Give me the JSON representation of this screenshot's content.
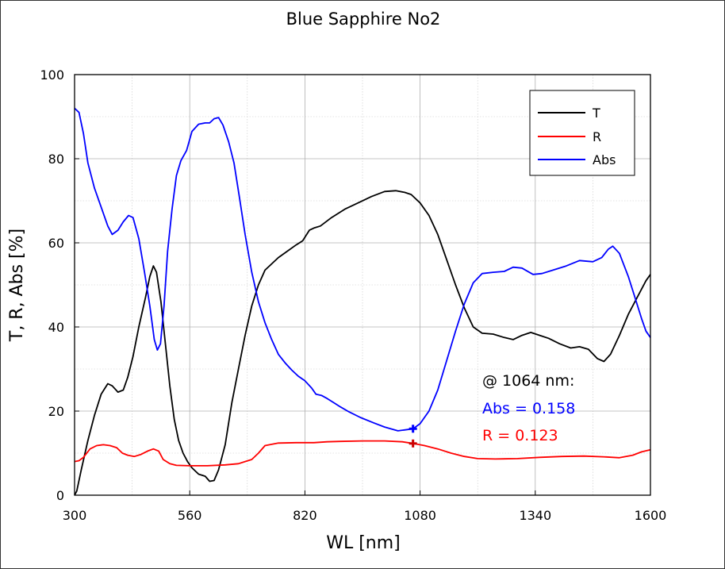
{
  "chart_data": {
    "type": "line",
    "title": "Blue Sapphire No2",
    "xlabel": "WL [nm]",
    "ylabel": "T, R, Abs [%]",
    "xlim": [
      300,
      1600
    ],
    "ylim": [
      0,
      100
    ],
    "x_ticks": [
      300,
      560,
      820,
      1080,
      1340,
      1600
    ],
    "y_ticks": [
      0,
      20,
      40,
      60,
      80,
      100
    ],
    "x_tick_labels": [
      "300",
      "560",
      "820",
      "1080",
      "1340",
      "1600"
    ],
    "y_tick_labels": [
      "0",
      "20",
      "40",
      "60",
      "80",
      "100"
    ],
    "grid": true,
    "legend_position": "top-right",
    "series": [
      {
        "name": "T",
        "color": "#000000",
        "points": [
          [
            300,
            0
          ],
          [
            305,
            1
          ],
          [
            315,
            6
          ],
          [
            330,
            13
          ],
          [
            345,
            19
          ],
          [
            360,
            24
          ],
          [
            375,
            26.5
          ],
          [
            385,
            26
          ],
          [
            398,
            24.5
          ],
          [
            410,
            25
          ],
          [
            420,
            28
          ],
          [
            432,
            33
          ],
          [
            445,
            40
          ],
          [
            460,
            47
          ],
          [
            470,
            52
          ],
          [
            478,
            54.5
          ],
          [
            485,
            53
          ],
          [
            495,
            46
          ],
          [
            505,
            36
          ],
          [
            515,
            26
          ],
          [
            525,
            18
          ],
          [
            535,
            13
          ],
          [
            545,
            10
          ],
          [
            555,
            8
          ],
          [
            565,
            6.5
          ],
          [
            580,
            5
          ],
          [
            595,
            4.5
          ],
          [
            605,
            3.3
          ],
          [
            615,
            3.5
          ],
          [
            625,
            6
          ],
          [
            640,
            12
          ],
          [
            655,
            22
          ],
          [
            670,
            30
          ],
          [
            685,
            38
          ],
          [
            700,
            45
          ],
          [
            715,
            50
          ],
          [
            730,
            53.5
          ],
          [
            745,
            55
          ],
          [
            760,
            56.5
          ],
          [
            780,
            58
          ],
          [
            800,
            59.5
          ],
          [
            815,
            60.5
          ],
          [
            830,
            63
          ],
          [
            840,
            63.5
          ],
          [
            855,
            64
          ],
          [
            880,
            66
          ],
          [
            910,
            68
          ],
          [
            940,
            69.5
          ],
          [
            970,
            71
          ],
          [
            1000,
            72.2
          ],
          [
            1025,
            72.4
          ],
          [
            1045,
            72
          ],
          [
            1060,
            71.5
          ],
          [
            1080,
            69.5
          ],
          [
            1100,
            66.5
          ],
          [
            1120,
            62
          ],
          [
            1140,
            56
          ],
          [
            1160,
            50
          ],
          [
            1180,
            44.5
          ],
          [
            1200,
            40
          ],
          [
            1220,
            38.5
          ],
          [
            1245,
            38.3
          ],
          [
            1270,
            37.5
          ],
          [
            1290,
            37
          ],
          [
            1310,
            38
          ],
          [
            1330,
            38.7
          ],
          [
            1350,
            38
          ],
          [
            1370,
            37.3
          ],
          [
            1395,
            36
          ],
          [
            1420,
            35
          ],
          [
            1440,
            35.3
          ],
          [
            1460,
            34.7
          ],
          [
            1480,
            32.5
          ],
          [
            1495,
            31.8
          ],
          [
            1510,
            33.5
          ],
          [
            1530,
            38
          ],
          [
            1550,
            43
          ],
          [
            1570,
            47
          ],
          [
            1590,
            51
          ],
          [
            1600,
            52.5
          ]
        ]
      },
      {
        "name": "R",
        "color": "#ff0000",
        "points": [
          [
            300,
            8
          ],
          [
            310,
            8.2
          ],
          [
            320,
            9
          ],
          [
            335,
            11
          ],
          [
            350,
            11.8
          ],
          [
            365,
            12
          ],
          [
            380,
            11.8
          ],
          [
            395,
            11.3
          ],
          [
            408,
            10
          ],
          [
            420,
            9.5
          ],
          [
            435,
            9.2
          ],
          [
            450,
            9.7
          ],
          [
            465,
            10.5
          ],
          [
            478,
            11
          ],
          [
            490,
            10.5
          ],
          [
            500,
            8.5
          ],
          [
            515,
            7.5
          ],
          [
            530,
            7.1
          ],
          [
            560,
            7
          ],
          [
            600,
            7
          ],
          [
            640,
            7.2
          ],
          [
            670,
            7.5
          ],
          [
            685,
            8
          ],
          [
            700,
            8.5
          ],
          [
            715,
            10
          ],
          [
            730,
            11.8
          ],
          [
            760,
            12.4
          ],
          [
            800,
            12.5
          ],
          [
            840,
            12.5
          ],
          [
            870,
            12.7
          ],
          [
            900,
            12.8
          ],
          [
            950,
            12.9
          ],
          [
            1000,
            12.9
          ],
          [
            1040,
            12.7
          ],
          [
            1064,
            12.3
          ],
          [
            1090,
            11.8
          ],
          [
            1120,
            11
          ],
          [
            1150,
            10
          ],
          [
            1180,
            9.2
          ],
          [
            1210,
            8.7
          ],
          [
            1250,
            8.6
          ],
          [
            1300,
            8.7
          ],
          [
            1350,
            9
          ],
          [
            1400,
            9.2
          ],
          [
            1450,
            9.3
          ],
          [
            1500,
            9.1
          ],
          [
            1530,
            8.9
          ],
          [
            1560,
            9.5
          ],
          [
            1580,
            10.3
          ],
          [
            1600,
            10.8
          ]
        ]
      },
      {
        "name": "Abs",
        "color": "#0000ff",
        "points": [
          [
            300,
            92
          ],
          [
            310,
            91
          ],
          [
            320,
            86
          ],
          [
            330,
            79
          ],
          [
            345,
            73
          ],
          [
            360,
            68.5
          ],
          [
            375,
            64
          ],
          [
            385,
            62
          ],
          [
            398,
            63
          ],
          [
            410,
            65
          ],
          [
            422,
            66.5
          ],
          [
            432,
            66
          ],
          [
            445,
            61
          ],
          [
            458,
            53
          ],
          [
            470,
            45
          ],
          [
            480,
            37
          ],
          [
            487,
            34.5
          ],
          [
            494,
            36
          ],
          [
            502,
            45
          ],
          [
            510,
            58
          ],
          [
            520,
            68
          ],
          [
            530,
            76
          ],
          [
            540,
            79.5
          ],
          [
            553,
            82
          ],
          [
            565,
            86.5
          ],
          [
            580,
            88.2
          ],
          [
            595,
            88.5
          ],
          [
            605,
            88.5
          ],
          [
            615,
            89.5
          ],
          [
            625,
            89.8
          ],
          [
            635,
            88
          ],
          [
            648,
            84
          ],
          [
            660,
            79
          ],
          [
            672,
            71
          ],
          [
            685,
            62
          ],
          [
            700,
            53
          ],
          [
            715,
            46
          ],
          [
            730,
            41
          ],
          [
            745,
            37
          ],
          [
            760,
            33.5
          ],
          [
            775,
            31.5
          ],
          [
            790,
            29.8
          ],
          [
            805,
            28.3
          ],
          [
            820,
            27.2
          ],
          [
            835,
            25.5
          ],
          [
            845,
            24
          ],
          [
            858,
            23.7
          ],
          [
            870,
            23
          ],
          [
            885,
            22
          ],
          [
            900,
            21
          ],
          [
            920,
            19.8
          ],
          [
            945,
            18.5
          ],
          [
            975,
            17.2
          ],
          [
            1000,
            16.2
          ],
          [
            1030,
            15.3
          ],
          [
            1064,
            15.8
          ],
          [
            1080,
            17
          ],
          [
            1100,
            20
          ],
          [
            1120,
            25
          ],
          [
            1140,
            32
          ],
          [
            1160,
            39
          ],
          [
            1180,
            45.5
          ],
          [
            1200,
            50.5
          ],
          [
            1220,
            52.7
          ],
          [
            1245,
            53
          ],
          [
            1270,
            53.2
          ],
          [
            1290,
            54.2
          ],
          [
            1310,
            54
          ],
          [
            1335,
            52.5
          ],
          [
            1355,
            52.7
          ],
          [
            1380,
            53.5
          ],
          [
            1410,
            54.5
          ],
          [
            1440,
            55.8
          ],
          [
            1470,
            55.5
          ],
          [
            1490,
            56.5
          ],
          [
            1505,
            58.5
          ],
          [
            1515,
            59.2
          ],
          [
            1530,
            57.5
          ],
          [
            1550,
            52
          ],
          [
            1565,
            47
          ],
          [
            1580,
            42
          ],
          [
            1590,
            39
          ],
          [
            1600,
            37.5
          ]
        ]
      }
    ],
    "markers": [
      {
        "series": "Abs",
        "x": 1064,
        "y": 15.8,
        "color": "#0000ff"
      },
      {
        "series": "R",
        "x": 1064,
        "y": 12.3,
        "color": "#cc0000"
      }
    ],
    "annotations": [
      {
        "text": "@ 1064 nm:",
        "color": "#000000"
      },
      {
        "text": "Abs = 0.158",
        "color": "#0000ff"
      },
      {
        "text": "R = 0.123",
        "color": "#ff0000"
      }
    ]
  }
}
